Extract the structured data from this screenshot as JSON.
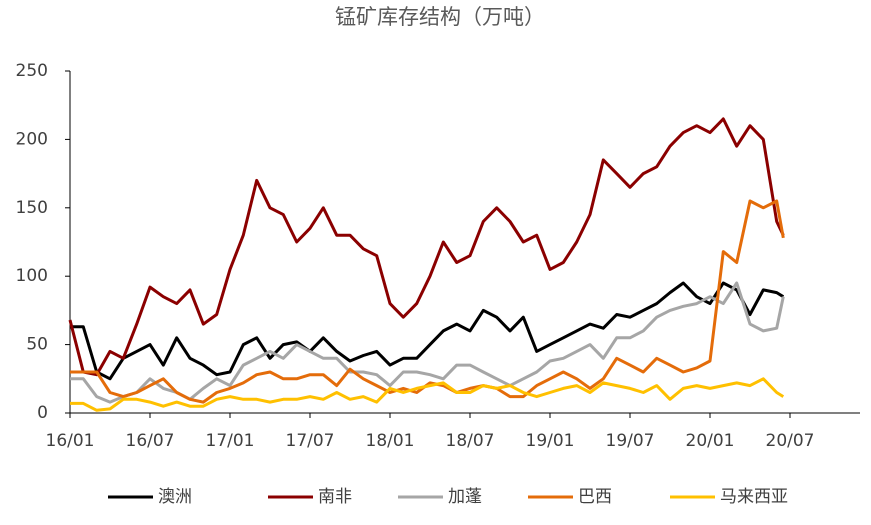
{
  "chart_data": {
    "type": "line",
    "title": "锰矿库存结构（万吨）",
    "x": [
      0,
      1,
      2,
      3,
      4,
      5,
      6,
      7,
      8,
      9,
      10,
      11,
      12,
      13,
      14,
      15,
      16,
      17,
      18,
      19,
      20,
      21,
      22,
      23,
      24,
      25,
      26,
      27,
      28,
      29,
      30,
      31,
      32,
      33,
      34,
      35,
      36,
      37,
      38,
      39,
      40,
      41,
      42,
      43,
      44,
      45,
      46,
      47,
      48,
      49,
      50,
      51,
      52,
      53,
      53.5
    ],
    "series": [
      {
        "name": "澳洲",
        "color": "#000000",
        "values": [
          63,
          63,
          30,
          25,
          40,
          45,
          50,
          35,
          55,
          40,
          35,
          28,
          30,
          50,
          55,
          40,
          50,
          52,
          45,
          55,
          45,
          38,
          42,
          45,
          35,
          40,
          40,
          50,
          60,
          65,
          60,
          75,
          70,
          60,
          70,
          45,
          50,
          55,
          60,
          65,
          62,
          72,
          70,
          75,
          80,
          88,
          95,
          85,
          80,
          95,
          90,
          72,
          90,
          88,
          85
        ]
      },
      {
        "name": "南非",
        "color": "#8b0000",
        "values": [
          68,
          30,
          28,
          45,
          40,
          65,
          92,
          85,
          80,
          90,
          65,
          72,
          105,
          130,
          170,
          150,
          145,
          125,
          135,
          150,
          130,
          130,
          120,
          115,
          80,
          70,
          80,
          100,
          125,
          110,
          115,
          140,
          150,
          140,
          125,
          130,
          105,
          110,
          125,
          145,
          185,
          175,
          165,
          175,
          180,
          195,
          205,
          210,
          205,
          215,
          195,
          210,
          200,
          140,
          130
        ]
      },
      {
        "name": "加蓬",
        "color": "#a6a6a6",
        "values": [
          25,
          25,
          12,
          8,
          12,
          15,
          25,
          18,
          15,
          10,
          18,
          25,
          20,
          35,
          40,
          45,
          40,
          50,
          45,
          40,
          40,
          30,
          30,
          28,
          20,
          30,
          30,
          28,
          25,
          35,
          35,
          30,
          25,
          20,
          25,
          30,
          38,
          40,
          45,
          50,
          40,
          55,
          55,
          60,
          70,
          75,
          78,
          80,
          85,
          80,
          95,
          65,
          60,
          62,
          85
        ]
      },
      {
        "name": "巴西",
        "color": "#e46c0a",
        "values": [
          30,
          30,
          30,
          15,
          12,
          15,
          20,
          25,
          15,
          10,
          8,
          15,
          18,
          22,
          28,
          30,
          25,
          25,
          28,
          28,
          20,
          32,
          25,
          20,
          15,
          18,
          15,
          22,
          20,
          15,
          18,
          20,
          18,
          12,
          12,
          20,
          25,
          30,
          25,
          18,
          25,
          40,
          35,
          30,
          40,
          35,
          30,
          33,
          38,
          118,
          110,
          155,
          150,
          155,
          128
        ]
      },
      {
        "name": "马来西亚",
        "color": "#ffc000",
        "values": [
          7,
          7,
          2,
          3,
          10,
          10,
          8,
          5,
          8,
          5,
          5,
          10,
          12,
          10,
          10,
          8,
          10,
          10,
          12,
          10,
          15,
          10,
          12,
          8,
          18,
          15,
          18,
          20,
          22,
          15,
          15,
          20,
          18,
          20,
          15,
          12,
          15,
          18,
          20,
          15,
          22,
          20,
          18,
          15,
          20,
          10,
          18,
          20,
          18,
          20,
          22,
          20,
          25,
          15,
          12
        ]
      }
    ],
    "xlim": [
      0,
      59.25
    ],
    "xticks": [
      {
        "value": 0,
        "label": "16/01"
      },
      {
        "value": 6,
        "label": "16/07"
      },
      {
        "value": 12,
        "label": "17/01"
      },
      {
        "value": 18,
        "label": "17/07"
      },
      {
        "value": 24,
        "label": "18/01"
      },
      {
        "value": 30,
        "label": "18/07"
      },
      {
        "value": 36,
        "label": "19/01"
      },
      {
        "value": 42,
        "label": "19/07"
      },
      {
        "value": 48,
        "label": "20/01"
      },
      {
        "value": 54,
        "label": "20/07"
      }
    ],
    "ylim": [
      0,
      250
    ],
    "yticks": [
      0,
      50,
      100,
      150,
      200,
      250
    ],
    "legend": "bottom"
  }
}
